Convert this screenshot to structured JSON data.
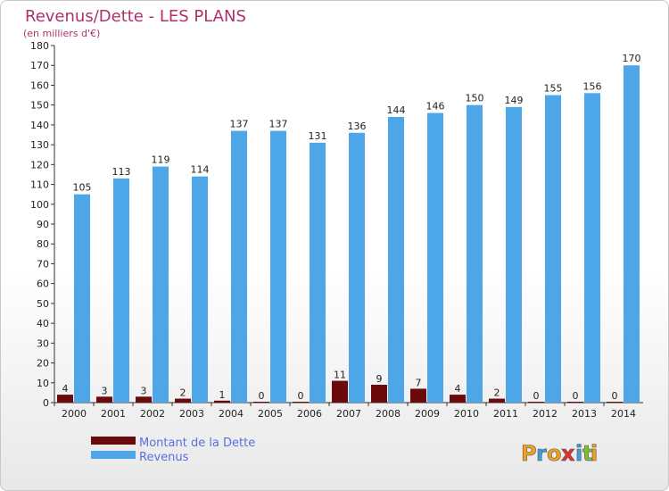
{
  "chart_data": {
    "type": "bar",
    "title": "Revenus/Dette - LES PLANS",
    "subtitle": "(en milliers d'€)",
    "categories": [
      "2000",
      "2001",
      "2002",
      "2003",
      "2004",
      "2005",
      "2006",
      "2007",
      "2008",
      "2009",
      "2010",
      "2011",
      "2012",
      "2013",
      "2014"
    ],
    "series": [
      {
        "name": "Montant de la Dette",
        "color": "#6b0a0a",
        "values": [
          4,
          3,
          3,
          2,
          1,
          0,
          0,
          11,
          9,
          7,
          4,
          2,
          0,
          0,
          0
        ]
      },
      {
        "name": "Revenus",
        "color": "#4ca6e8",
        "values": [
          105,
          113,
          119,
          114,
          137,
          137,
          131,
          136,
          144,
          146,
          150,
          149,
          155,
          156,
          170
        ]
      }
    ],
    "ylim": [
      0,
      180
    ],
    "yticks": [
      0,
      10,
      20,
      30,
      40,
      50,
      60,
      70,
      80,
      90,
      100,
      110,
      120,
      130,
      140,
      150,
      160,
      170,
      180
    ],
    "grid": false,
    "legend_position": "bottom-left"
  },
  "branding": {
    "logo_letters": [
      "P",
      "r",
      "o",
      "x",
      "i",
      "t",
      "i"
    ],
    "logo_colors": [
      "#f0a020",
      "#3aa0e0",
      "#f0a020",
      "#e03030",
      "#3aa0e0",
      "#80c030",
      "#f0a020"
    ]
  }
}
